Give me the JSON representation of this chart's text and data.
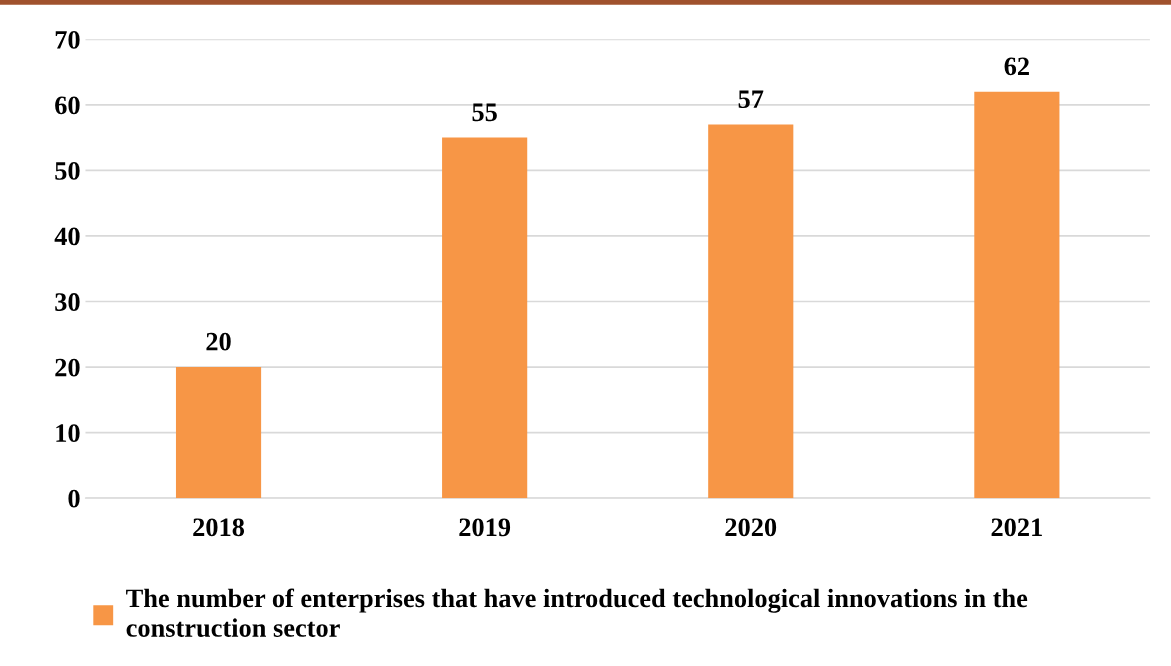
{
  "chart_data": {
    "type": "bar",
    "categories": [
      "2018",
      "2019",
      "2020",
      "2021"
    ],
    "series": [
      {
        "name": "The number of enterprises that have introduced technological innovations in the construction sector",
        "color": "#f79646",
        "values": [
          20,
          55,
          57,
          62
        ]
      }
    ],
    "ylim": [
      0,
      70
    ],
    "yticks": [
      0,
      10,
      20,
      30,
      40,
      50,
      60,
      70
    ],
    "grid": "y",
    "legend": "bottom",
    "data_labels": true
  }
}
